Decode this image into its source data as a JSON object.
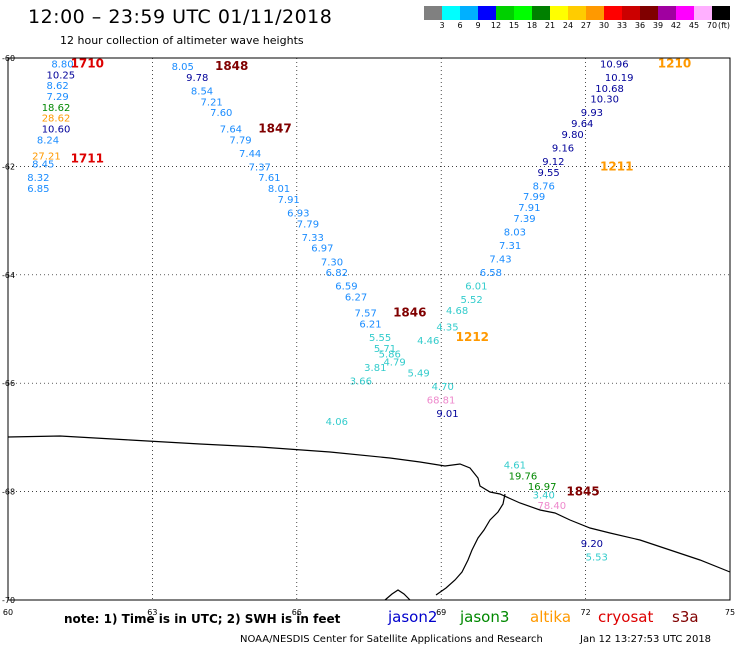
{
  "header": {
    "title": "12:00 – 23:59 UTC 01/11/2018",
    "subtitle": "12 hour collection of altimeter wave heights"
  },
  "legend": {
    "colors": [
      "#808080",
      "#00ffff",
      "#00b0ff",
      "#0000ff",
      "#00d000",
      "#00ff00",
      "#008000",
      "#ffff00",
      "#ffcc00",
      "#ff9900",
      "#ff0000",
      "#cc0000",
      "#800000",
      "#a000a0",
      "#ff00ff",
      "#ffb0ff",
      "#000000"
    ],
    "labels": [
      "3",
      "6",
      "9",
      "12",
      "15",
      "18",
      "21",
      "24",
      "27",
      "30",
      "33",
      "36",
      "39",
      "42",
      "45",
      "70",
      "(ft)"
    ]
  },
  "axes": {
    "lon_ticks": [
      "60",
      "63",
      "66",
      "69",
      "72",
      "75"
    ],
    "lat_ticks": [
      "-60",
      "-62",
      "-64",
      "-66",
      "-68",
      "-70"
    ]
  },
  "palette": {
    "cyan": "#33cccc",
    "skyblue": "#1a8cff",
    "navy": "#000099",
    "green": "#008800",
    "orange": "#ff9900",
    "red": "#dd0000",
    "maroon": "#800000",
    "pink": "#ee88cc"
  },
  "track_times": [
    {
      "text": "1710",
      "color": "red",
      "lon": 61.3,
      "lat": -60.1
    },
    {
      "text": "1711",
      "color": "red",
      "lon": 61.3,
      "lat": -61.85
    },
    {
      "text": "1848",
      "color": "maroon",
      "lon": 64.3,
      "lat": -60.15
    },
    {
      "text": "1847",
      "color": "maroon",
      "lon": 65.2,
      "lat": -61.3
    },
    {
      "text": "1846",
      "color": "maroon",
      "lon": 68.0,
      "lat": -64.7
    },
    {
      "text": "1212",
      "color": "orange",
      "lon": 69.3,
      "lat": -65.15
    },
    {
      "text": "1210",
      "color": "orange",
      "lon": 73.5,
      "lat": -60.1
    },
    {
      "text": "1211",
      "color": "orange",
      "lon": 72.3,
      "lat": -62.0
    },
    {
      "text": "1845",
      "color": "maroon",
      "lon": 71.6,
      "lat": -68.0
    }
  ],
  "observations": [
    {
      "v": "8.80",
      "c": "skyblue",
      "lon": 60.9,
      "lat": -60.1
    },
    {
      "v": "10.25",
      "c": "navy",
      "lon": 60.8,
      "lat": -60.3
    },
    {
      "v": "8.62",
      "c": "skyblue",
      "lon": 60.8,
      "lat": -60.5
    },
    {
      "v": "7.29",
      "c": "skyblue",
      "lon": 60.8,
      "lat": -60.7
    },
    {
      "v": "18.62",
      "c": "green",
      "lon": 60.7,
      "lat": -60.9
    },
    {
      "v": "28.62",
      "c": "orange",
      "lon": 60.7,
      "lat": -61.1
    },
    {
      "v": "10.60",
      "c": "navy",
      "lon": 60.7,
      "lat": -61.3
    },
    {
      "v": "8.24",
      "c": "skyblue",
      "lon": 60.6,
      "lat": -61.5
    },
    {
      "v": "27.21",
      "c": "orange",
      "lon": 60.5,
      "lat": -61.8
    },
    {
      "v": "8.45",
      "c": "skyblue",
      "lon": 60.5,
      "lat": -61.95
    },
    {
      "v": "8.32",
      "c": "skyblue",
      "lon": 60.4,
      "lat": -62.2
    },
    {
      "v": "6.85",
      "c": "skyblue",
      "lon": 60.4,
      "lat": -62.4
    },
    {
      "v": "8.05",
      "c": "skyblue",
      "lon": 63.4,
      "lat": -60.15
    },
    {
      "v": "9.78",
      "c": "navy",
      "lon": 63.7,
      "lat": -60.35
    },
    {
      "v": "8.54",
      "c": "skyblue",
      "lon": 63.8,
      "lat": -60.6
    },
    {
      "v": "7.21",
      "c": "skyblue",
      "lon": 64.0,
      "lat": -60.8
    },
    {
      "v": "7.60",
      "c": "skyblue",
      "lon": 64.2,
      "lat": -61.0
    },
    {
      "v": "7.64",
      "c": "skyblue",
      "lon": 64.4,
      "lat": -61.3
    },
    {
      "v": "7.79",
      "c": "skyblue",
      "lon": 64.6,
      "lat": -61.5
    },
    {
      "v": "7.44",
      "c": "skyblue",
      "lon": 64.8,
      "lat": -61.75
    },
    {
      "v": "7.37",
      "c": "skyblue",
      "lon": 65.0,
      "lat": -62.0
    },
    {
      "v": "7.61",
      "c": "skyblue",
      "lon": 65.2,
      "lat": -62.2
    },
    {
      "v": "8.01",
      "c": "skyblue",
      "lon": 65.4,
      "lat": -62.4
    },
    {
      "v": "7.91",
      "c": "skyblue",
      "lon": 65.6,
      "lat": -62.6
    },
    {
      "v": "6.93",
      "c": "skyblue",
      "lon": 65.8,
      "lat": -62.85
    },
    {
      "v": "7.79",
      "c": "skyblue",
      "lon": 66.0,
      "lat": -63.05
    },
    {
      "v": "7.33",
      "c": "skyblue",
      "lon": 66.1,
      "lat": -63.3
    },
    {
      "v": "6.97",
      "c": "skyblue",
      "lon": 66.3,
      "lat": -63.5
    },
    {
      "v": "7.30",
      "c": "skyblue",
      "lon": 66.5,
      "lat": -63.75
    },
    {
      "v": "6.82",
      "c": "skyblue",
      "lon": 66.6,
      "lat": -63.95
    },
    {
      "v": "6.59",
      "c": "skyblue",
      "lon": 66.8,
      "lat": -64.2
    },
    {
      "v": "6.27",
      "c": "skyblue",
      "lon": 67.0,
      "lat": -64.4
    },
    {
      "v": "7.57",
      "c": "skyblue",
      "lon": 67.2,
      "lat": -64.7
    },
    {
      "v": "6.21",
      "c": "skyblue",
      "lon": 67.3,
      "lat": -64.9
    },
    {
      "v": "5.55",
      "c": "cyan",
      "lon": 67.5,
      "lat": -65.15
    },
    {
      "v": "5.71",
      "c": "cyan",
      "lon": 67.6,
      "lat": -65.35
    },
    {
      "v": "5.86",
      "c": "cyan",
      "lon": 67.7,
      "lat": -65.45
    },
    {
      "v": "4.79",
      "c": "cyan",
      "lon": 67.8,
      "lat": -65.6
    },
    {
      "v": "3.81",
      "c": "cyan",
      "lon": 67.4,
      "lat": -65.7
    },
    {
      "v": "3.66",
      "c": "cyan",
      "lon": 67.1,
      "lat": -65.95
    },
    {
      "v": "10.96",
      "c": "navy",
      "lon": 72.3,
      "lat": -60.1
    },
    {
      "v": "10.19",
      "c": "navy",
      "lon": 72.4,
      "lat": -60.35
    },
    {
      "v": "10.68",
      "c": "navy",
      "lon": 72.2,
      "lat": -60.55
    },
    {
      "v": "10.30",
      "c": "navy",
      "lon": 72.1,
      "lat": -60.75
    },
    {
      "v": "9.93",
      "c": "navy",
      "lon": 71.9,
      "lat": -61.0
    },
    {
      "v": "9.64",
      "c": "navy",
      "lon": 71.7,
      "lat": -61.2
    },
    {
      "v": "9.80",
      "c": "navy",
      "lon": 71.5,
      "lat": -61.4
    },
    {
      "v": "9.16",
      "c": "navy",
      "lon": 71.3,
      "lat": -61.65
    },
    {
      "v": "9.12",
      "c": "navy",
      "lon": 71.1,
      "lat": -61.9
    },
    {
      "v": "9.55",
      "c": "navy",
      "lon": 71.0,
      "lat": -62.1
    },
    {
      "v": "8.76",
      "c": "skyblue",
      "lon": 70.9,
      "lat": -62.35
    },
    {
      "v": "7.99",
      "c": "skyblue",
      "lon": 70.7,
      "lat": -62.55
    },
    {
      "v": "7.91",
      "c": "skyblue",
      "lon": 70.6,
      "lat": -62.75
    },
    {
      "v": "7.39",
      "c": "skyblue",
      "lon": 70.5,
      "lat": -62.95
    },
    {
      "v": "8.03",
      "c": "skyblue",
      "lon": 70.3,
      "lat": -63.2
    },
    {
      "v": "7.31",
      "c": "skyblue",
      "lon": 70.2,
      "lat": -63.45
    },
    {
      "v": "7.43",
      "c": "skyblue",
      "lon": 70.0,
      "lat": -63.7
    },
    {
      "v": "6.58",
      "c": "skyblue",
      "lon": 69.8,
      "lat": -63.95
    },
    {
      "v": "6.01",
      "c": "cyan",
      "lon": 69.5,
      "lat": -64.2
    },
    {
      "v": "5.52",
      "c": "cyan",
      "lon": 69.4,
      "lat": -64.45
    },
    {
      "v": "4.68",
      "c": "cyan",
      "lon": 69.1,
      "lat": -64.65
    },
    {
      "v": "4.35",
      "c": "cyan",
      "lon": 68.9,
      "lat": -64.95
    },
    {
      "v": "4.46",
      "c": "cyan",
      "lon": 68.5,
      "lat": -65.2
    },
    {
      "v": "5.49",
      "c": "cyan",
      "lon": 68.3,
      "lat": -65.8
    },
    {
      "v": "4.70",
      "c": "cyan",
      "lon": 68.8,
      "lat": -66.05
    },
    {
      "v": "68.81",
      "c": "pink",
      "lon": 68.7,
      "lat": -66.3
    },
    {
      "v": "9.01",
      "c": "navy",
      "lon": 68.9,
      "lat": -66.55
    },
    {
      "v": "4.06",
      "c": "cyan",
      "lon": 66.6,
      "lat": -66.7
    },
    {
      "v": "4.61",
      "c": "cyan",
      "lon": 70.3,
      "lat": -67.5
    },
    {
      "v": "19.76",
      "c": "green",
      "lon": 70.4,
      "lat": -67.7
    },
    {
      "v": "16.97",
      "c": "green",
      "lon": 70.8,
      "lat": -67.9
    },
    {
      "v": "3.40",
      "c": "cyan",
      "lon": 70.9,
      "lat": -68.05
    },
    {
      "v": "78.40",
      "c": "pink",
      "lon": 71.0,
      "lat": -68.25
    },
    {
      "v": "9.20",
      "c": "navy",
      "lon": 71.9,
      "lat": -68.95
    },
    {
      "v": "5.53",
      "c": "cyan",
      "lon": 72.0,
      "lat": -69.2
    }
  ],
  "note": "note: 1) Time is in UTC; 2) SWH is in feet",
  "satellites": [
    {
      "name": "jason2",
      "color": "#0000cc"
    },
    {
      "name": "jason3",
      "color": "#008800"
    },
    {
      "name": "altika",
      "color": "#ff9900"
    },
    {
      "name": "cryosat",
      "color": "#dd0000"
    },
    {
      "name": "s3a",
      "color": "#800000"
    }
  ],
  "footer": {
    "center": "NOAA/NESDIS Center for Satellite Applications and Research",
    "timestamp": "Jan 12 13:27:53 UTC 2018"
  }
}
